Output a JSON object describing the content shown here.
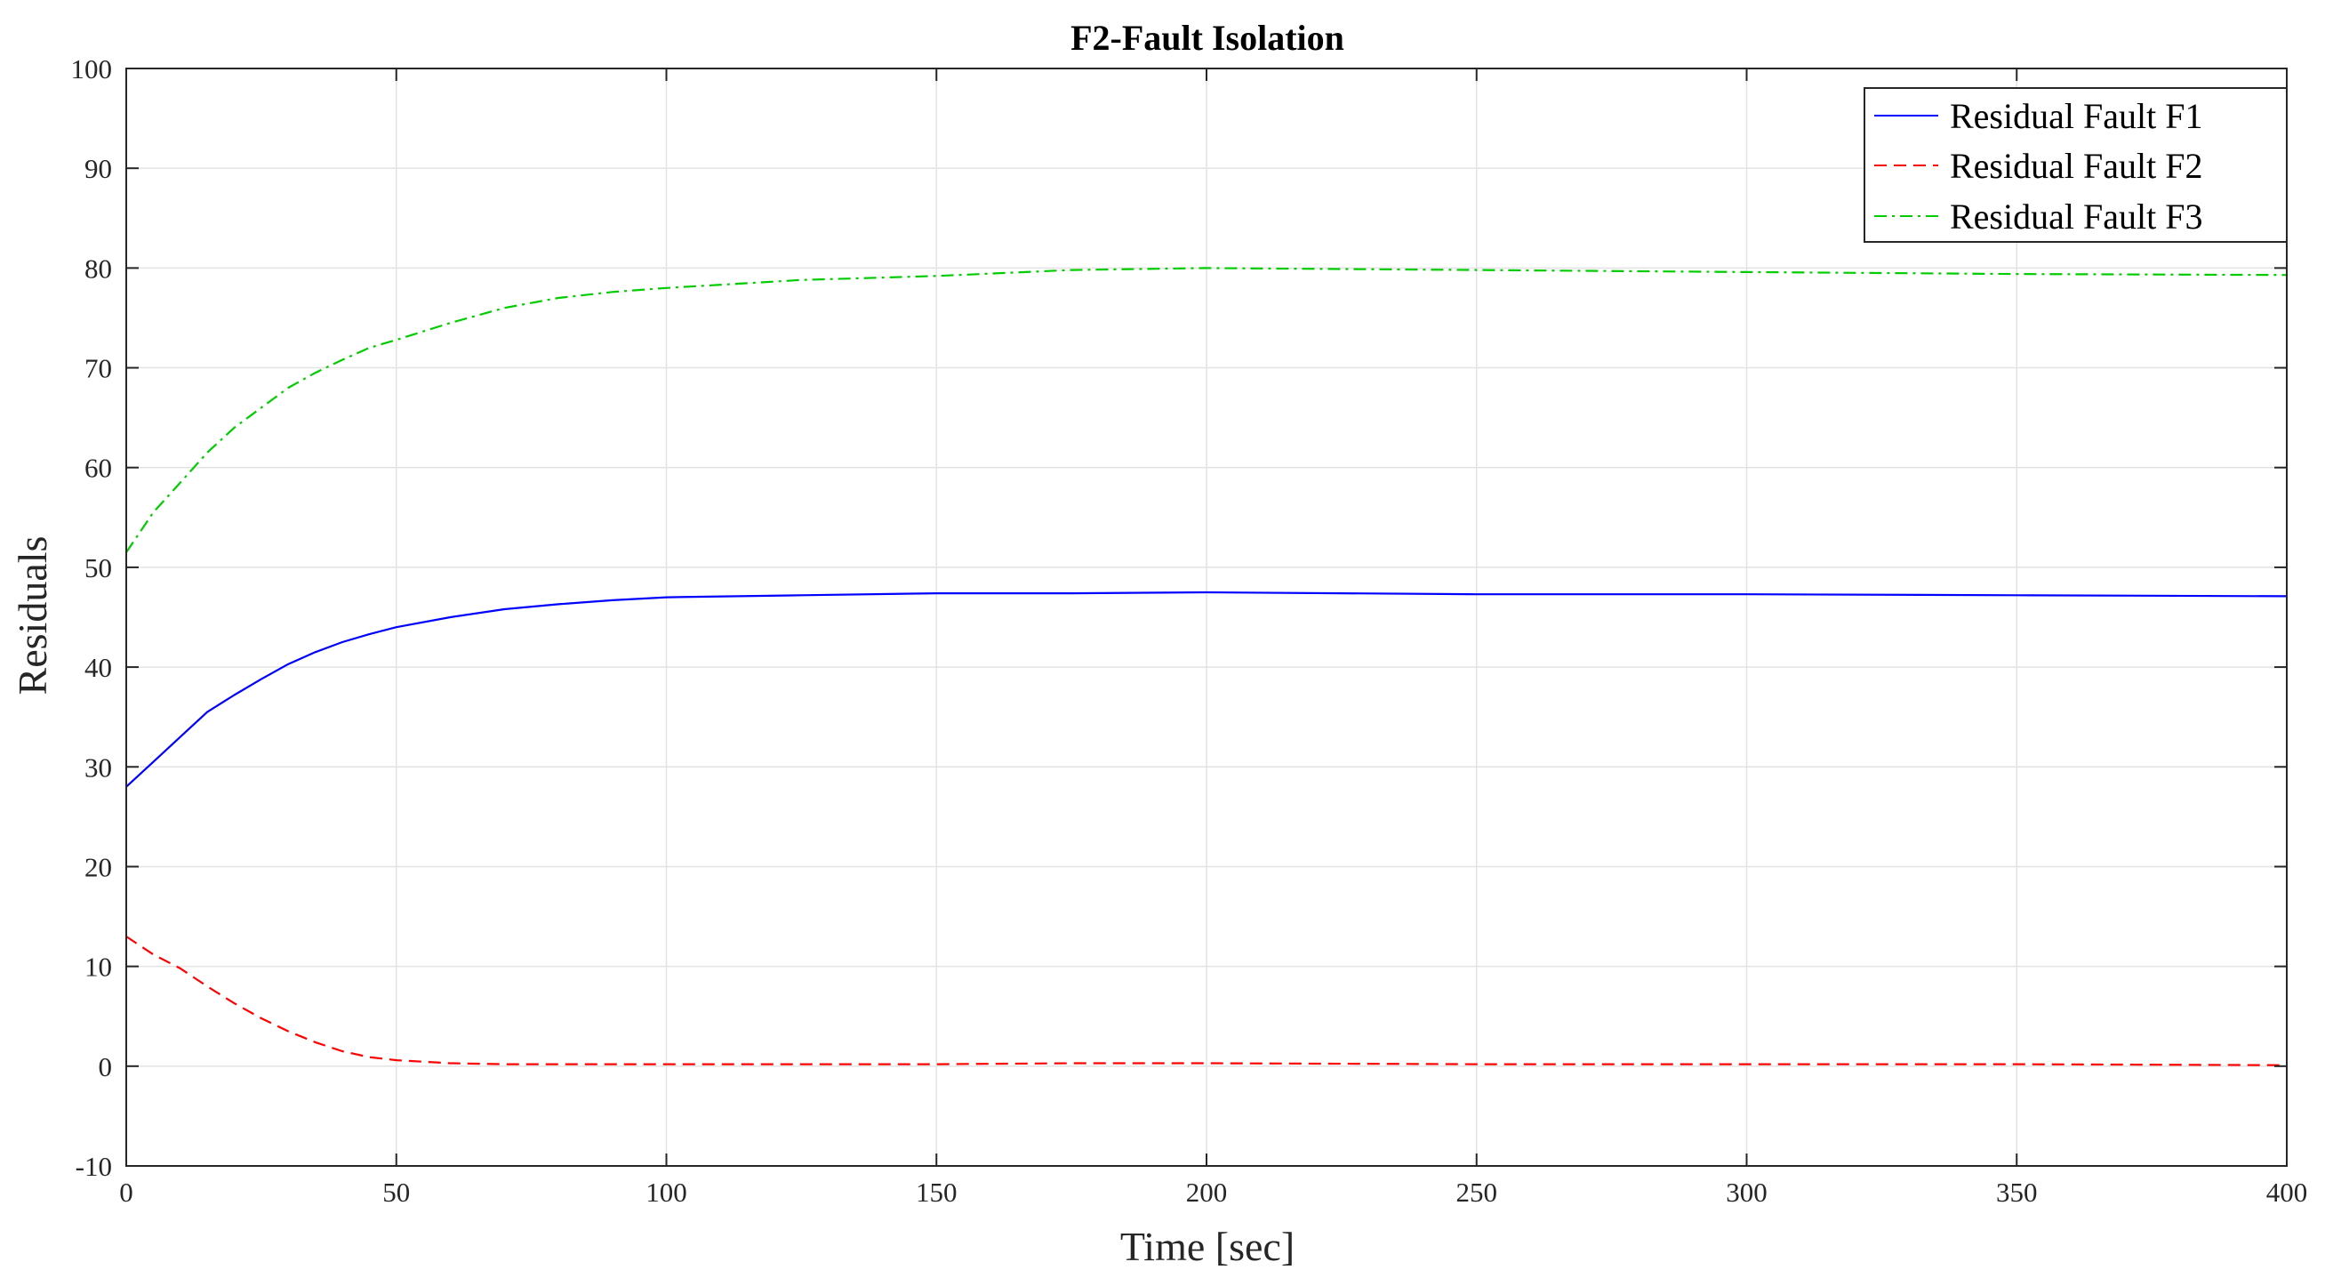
{
  "chart_data": {
    "type": "line",
    "title": "F2-Fault Isolation",
    "xlabel": "Time [sec]",
    "ylabel": "Residuals",
    "xlim": [
      0,
      400
    ],
    "ylim": [
      -10,
      100
    ],
    "xticks": [
      0,
      50,
      100,
      150,
      200,
      250,
      300,
      350,
      400
    ],
    "yticks": [
      -10,
      0,
      10,
      20,
      30,
      40,
      50,
      60,
      70,
      80,
      90,
      100
    ],
    "xtick_labels": [
      "0",
      "50",
      "100",
      "150",
      "200",
      "250",
      "300",
      "350",
      "400"
    ],
    "ytick_labels": [
      "-10",
      "0",
      "10",
      "20",
      "30",
      "40",
      "50",
      "60",
      "70",
      "80",
      "90",
      "100"
    ],
    "grid": true,
    "legend_position": "top-right",
    "x": [
      0,
      5,
      10,
      15,
      20,
      25,
      30,
      35,
      40,
      45,
      50,
      60,
      70,
      80,
      90,
      100,
      125,
      150,
      175,
      200,
      250,
      300,
      350,
      400
    ],
    "series": [
      {
        "name": "Residual Fault F1",
        "color": "#0000ff",
        "style": "solid",
        "values": [
          28,
          30.5,
          33,
          35.5,
          37.2,
          38.8,
          40.3,
          41.5,
          42.5,
          43.3,
          44,
          45,
          45.8,
          46.3,
          46.7,
          47,
          47.2,
          47.4,
          47.4,
          47.5,
          47.3,
          47.3,
          47.2,
          47.1
        ]
      },
      {
        "name": "Residual Fault F2",
        "color": "#ff0000",
        "style": "dashed",
        "values": [
          13,
          11.2,
          9.8,
          8,
          6.3,
          4.8,
          3.5,
          2.4,
          1.5,
          0.9,
          0.6,
          0.3,
          0.2,
          0.2,
          0.2,
          0.2,
          0.2,
          0.2,
          0.3,
          0.3,
          0.2,
          0.2,
          0.2,
          0.1
        ]
      },
      {
        "name": "Residual Fault F3",
        "color": "#00cc00",
        "style": "dashdot",
        "values": [
          51.5,
          55.5,
          58.5,
          61.5,
          64,
          66,
          68,
          69.5,
          70.8,
          72,
          72.8,
          74.5,
          76,
          77,
          77.6,
          78,
          78.8,
          79.2,
          79.8,
          80,
          79.8,
          79.6,
          79.4,
          79.3
        ]
      }
    ]
  }
}
